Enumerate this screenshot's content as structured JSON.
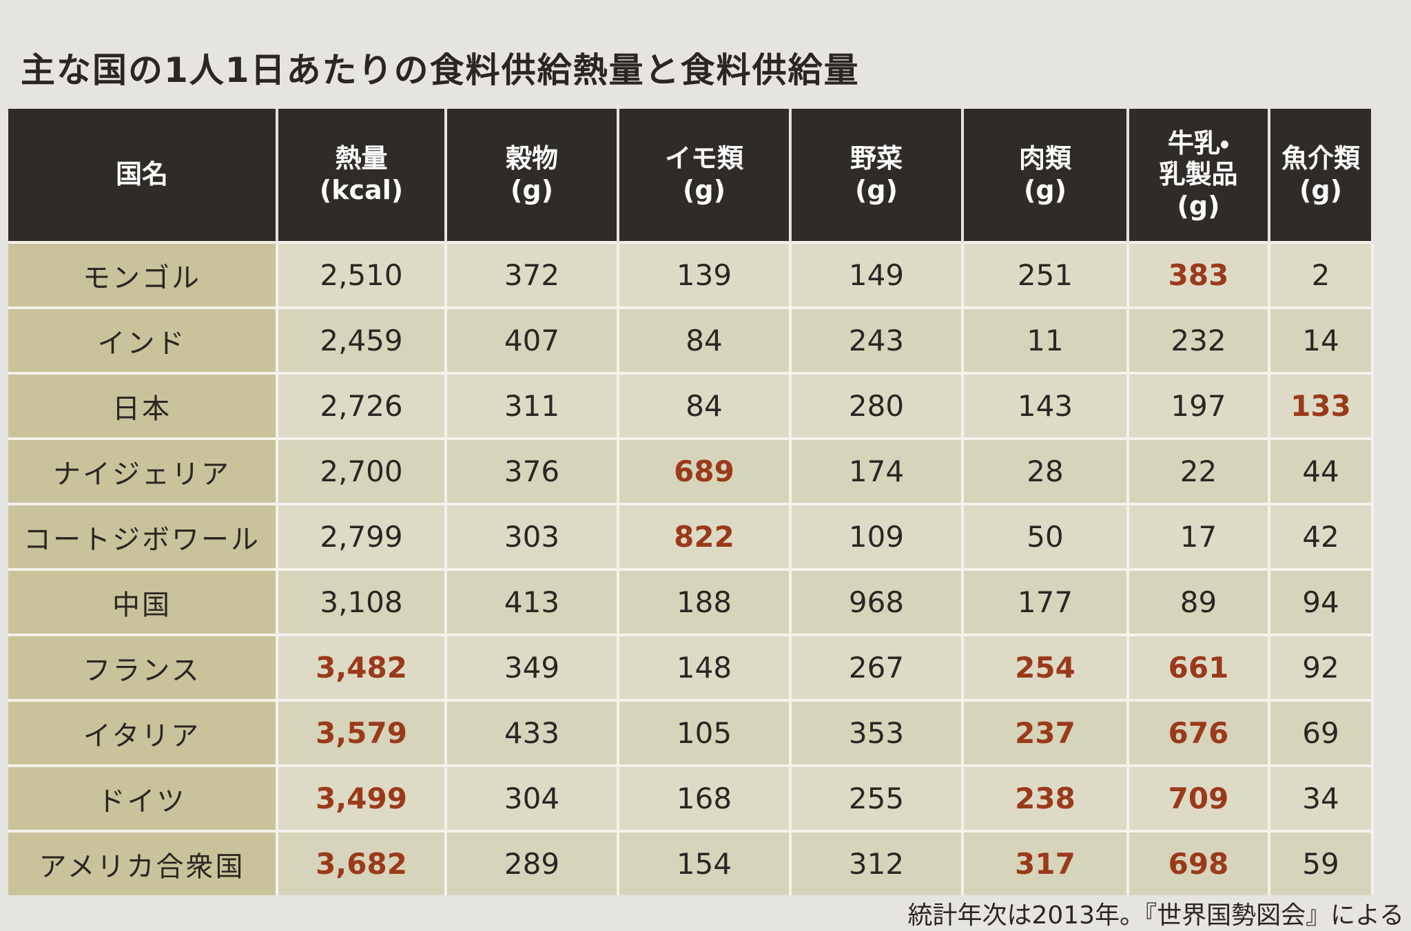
{
  "header": {
    "title": "主な国の1人1日あたりの食料供給熱量と食料供給量"
  },
  "table": {
    "columns": [
      "国名",
      "熱量\n(kcal)",
      "穀物\n(g)",
      "イモ類\n(g)",
      "野菜\n(g)",
      "肉類\n(g)",
      "牛乳・\n乳製品\n(g)",
      "魚介類\n(g)"
    ],
    "rows": [
      [
        "モンゴル",
        "2,510",
        "372",
        "139",
        "149",
        "251",
        "383",
        "2"
      ],
      [
        "インド",
        "2,459",
        "407",
        "84",
        "243",
        "11",
        "232",
        "14"
      ],
      [
        "日本",
        "2,726",
        "311",
        "84",
        "280",
        "143",
        "197",
        "133"
      ],
      [
        "ナイジェリア",
        "2,700",
        "376",
        "689",
        "174",
        "28",
        "22",
        "44"
      ],
      [
        "コートジボワール",
        "2,799",
        "303",
        "822",
        "109",
        "50",
        "17",
        "42"
      ],
      [
        "中国",
        "3,108",
        "413",
        "188",
        "968",
        "177",
        "89",
        "94"
      ],
      [
        "フランス",
        "3,482",
        "349",
        "148",
        "267",
        "254",
        "661",
        "92"
      ],
      [
        "イタリア",
        "3,579",
        "433",
        "105",
        "353",
        "237",
        "676",
        "69"
      ],
      [
        "ドイツ",
        "3,499",
        "304",
        "168",
        "255",
        "238",
        "709",
        "34"
      ],
      [
        "アメリカ合衆国",
        "3,682",
        "289",
        "154",
        "312",
        "317",
        "698",
        "59"
      ]
    ],
    "emphasis_color": "#9a3a1a",
    "emphasis": [
      [
        0,
        6
      ],
      [
        2,
        7
      ],
      [
        3,
        3
      ],
      [
        4,
        3
      ],
      [
        6,
        1
      ],
      [
        6,
        5
      ],
      [
        6,
        6
      ],
      [
        7,
        1
      ],
      [
        7,
        5
      ],
      [
        7,
        6
      ],
      [
        8,
        1
      ],
      [
        8,
        5
      ],
      [
        8,
        6
      ],
      [
        9,
        1
      ],
      [
        9,
        5
      ],
      [
        9,
        6
      ]
    ]
  },
  "footer": {
    "note": "統計年次は2013年。『世界国勢図会』による"
  }
}
